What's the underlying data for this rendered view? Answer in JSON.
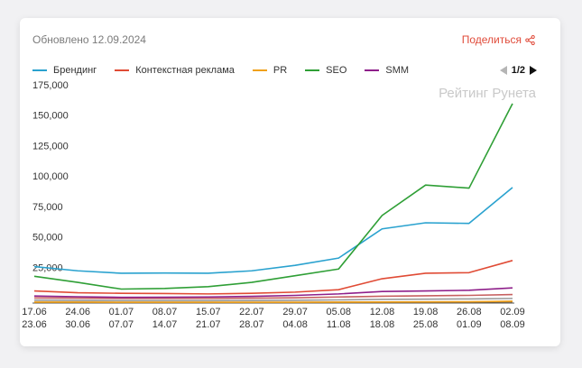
{
  "header": {
    "updated": "Обновлено 12.09.2024",
    "share_label": "Поделиться",
    "share_icon": "share-icon"
  },
  "pager": {
    "label": "1/2"
  },
  "watermark": "Рейтинг Рунета",
  "chart_data": {
    "type": "line",
    "categories": [
      [
        "17.06",
        "23.06"
      ],
      [
        "24.06",
        "30.06"
      ],
      [
        "01.07",
        "07.07"
      ],
      [
        "08.07",
        "14.07"
      ],
      [
        "15.07",
        "21.07"
      ],
      [
        "22.07",
        "28.07"
      ],
      [
        "29.07",
        "04.08"
      ],
      [
        "05.08",
        "11.08"
      ],
      [
        "12.08",
        "18.08"
      ],
      [
        "19.08",
        "25.08"
      ],
      [
        "26.08",
        "01.09"
      ],
      [
        "02.09",
        "08.09"
      ]
    ],
    "yticks": [
      "25,000",
      "50,000",
      "75,000",
      "100,000",
      "125,000",
      "150,000",
      "175,000"
    ],
    "ylim": [
      0,
      175000
    ],
    "legend_position": "top",
    "series": [
      {
        "name": "Брендинг",
        "color": "#2aa2cf",
        "values": [
          30000,
          26500,
          24500,
          24700,
          24500,
          26500,
          31000,
          37000,
          61000,
          66000,
          65500,
          95000
        ]
      },
      {
        "name": "Контекстная реклама",
        "color": "#e04b35",
        "values": [
          10000,
          8500,
          8000,
          7800,
          7500,
          8000,
          9000,
          11000,
          20000,
          24500,
          25000,
          35000
        ]
      },
      {
        "name": "PR",
        "color": "#f0a11b",
        "values": [
          800,
          800,
          700,
          700,
          700,
          700,
          700,
          800,
          900,
          1000,
          1100,
          1500
        ]
      },
      {
        "name": "SEO",
        "color": "#2f9f36",
        "values": [
          22000,
          17000,
          11500,
          12000,
          13500,
          17000,
          22500,
          28000,
          72000,
          97000,
          94500,
          164000
        ]
      },
      {
        "name": "SMM",
        "color": "#8e1f8a",
        "values": [
          5800,
          5200,
          4700,
          4800,
          5000,
          5500,
          6300,
          7500,
          9500,
          10000,
          10500,
          12500
        ]
      }
    ],
    "extra_lines": [
      {
        "color": "#c76060",
        "values": [
          4200,
          4000,
          3800,
          3800,
          3800,
          4000,
          4300,
          5000,
          5600,
          6000,
          6300,
          7000
        ]
      },
      {
        "color": "#9a9a9a",
        "values": [
          2400,
          2200,
          2000,
          2000,
          2000,
          2100,
          2300,
          2600,
          3000,
          3200,
          3400,
          3800
        ]
      },
      {
        "color": "#7a5a2a",
        "values": [
          600,
          600,
          500,
          500,
          500,
          500,
          500,
          600,
          700,
          800,
          900,
          1100
        ]
      }
    ]
  }
}
